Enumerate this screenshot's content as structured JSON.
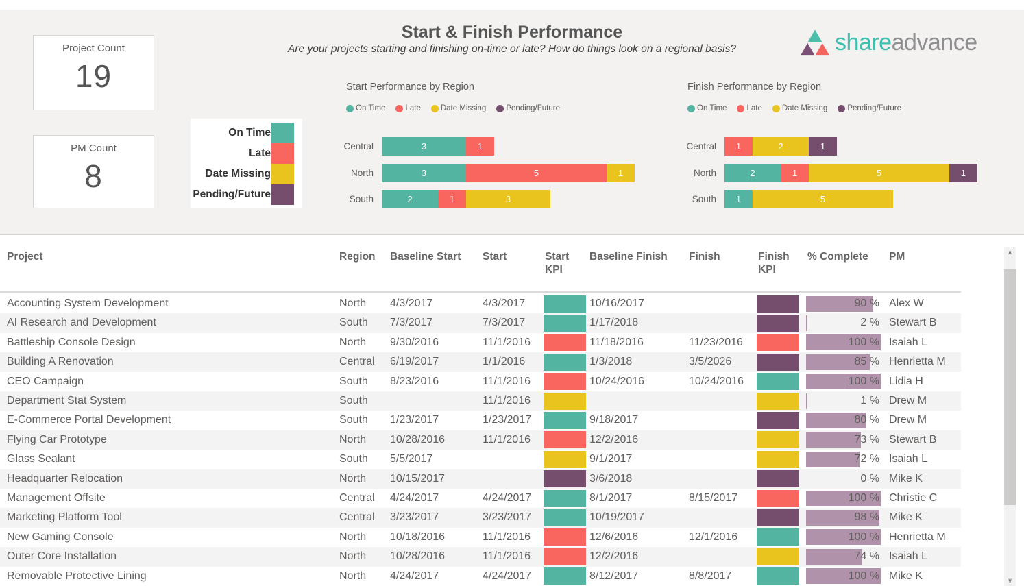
{
  "header": {
    "title": "Start & Finish Performance",
    "subtitle": "Are your projects starting and finishing on-time or late?  How do things look on a regional basis?",
    "logo": {
      "share_text": "share",
      "advance_text": "advance"
    }
  },
  "cards": [
    {
      "label": "Project Count",
      "value": "19"
    },
    {
      "label": "PM Count",
      "value": "8"
    }
  ],
  "colors": {
    "on_time": "#53b5a1",
    "late": "#f9655f",
    "date_missing": "#e9c31e",
    "pending_future": "#744e6c",
    "pct_bar": "#b093aa",
    "logo_teal": "#4cbfab",
    "logo_purple": "#7b5178",
    "logo_coral": "#f4655f"
  },
  "kpi_legend": {
    "items": [
      {
        "label": "On Time",
        "key": "on_time"
      },
      {
        "label": "Late",
        "key": "late"
      },
      {
        "label": "Date Missing",
        "key": "date_missing"
      },
      {
        "label": "Pending/Future",
        "key": "pending_future"
      }
    ]
  },
  "chart_data": [
    {
      "type": "bar",
      "orientation": "horizontal",
      "stacked": true,
      "title": "Start Performance by Region",
      "categories": [
        "Central",
        "North",
        "South"
      ],
      "legend": [
        "On Time",
        "Late",
        "Date Missing",
        "Pending/Future"
      ],
      "legend_position": "top",
      "xlim": [
        0,
        9
      ],
      "grid": false,
      "series": [
        {
          "name": "On Time",
          "key": "on_time",
          "values": [
            3,
            3,
            2
          ]
        },
        {
          "name": "Late",
          "key": "late",
          "values": [
            1,
            5,
            1
          ]
        },
        {
          "name": "Date Missing",
          "key": "date_missing",
          "values": [
            0,
            1,
            3
          ]
        },
        {
          "name": "Pending/Future",
          "key": "pending_future",
          "values": [
            0,
            0,
            0
          ]
        }
      ]
    },
    {
      "type": "bar",
      "orientation": "horizontal",
      "stacked": true,
      "title": "Finish Performance by Region",
      "categories": [
        "Central",
        "North",
        "South"
      ],
      "legend": [
        "On Time",
        "Late",
        "Date Missing",
        "Pending/Future"
      ],
      "legend_position": "top",
      "xlim": [
        0,
        9
      ],
      "grid": false,
      "series": [
        {
          "name": "On Time",
          "key": "on_time",
          "values": [
            0,
            2,
            1
          ]
        },
        {
          "name": "Late",
          "key": "late",
          "values": [
            1,
            1,
            0
          ]
        },
        {
          "name": "Date Missing",
          "key": "date_missing",
          "values": [
            2,
            5,
            5
          ]
        },
        {
          "name": "Pending/Future",
          "key": "pending_future",
          "values": [
            1,
            1,
            0
          ]
        }
      ]
    }
  ],
  "table": {
    "columns": [
      "Project",
      "Region",
      "Baseline Start",
      "Start",
      "Start KPI",
      "Baseline Finish",
      "Finish",
      "Finish KPI",
      "% Complete",
      "PM"
    ],
    "rows": [
      {
        "project": "Accounting System Development",
        "region": "North",
        "baseline_start": "4/3/2017",
        "start": "4/3/2017",
        "start_kpi": "on_time",
        "baseline_finish": "10/16/2017",
        "finish": "",
        "finish_kpi": "pending_future",
        "pct_complete": 90,
        "pm": "Alex W"
      },
      {
        "project": "AI Research and Development",
        "region": "South",
        "baseline_start": "7/3/2017",
        "start": "7/3/2017",
        "start_kpi": "on_time",
        "baseline_finish": "1/17/2018",
        "finish": "",
        "finish_kpi": "pending_future",
        "pct_complete": 2,
        "pm": "Stewart B"
      },
      {
        "project": "Battleship Console Design",
        "region": "North",
        "baseline_start": "9/30/2016",
        "start": "11/1/2016",
        "start_kpi": "late",
        "baseline_finish": "11/18/2016",
        "finish": "11/23/2016",
        "finish_kpi": "late",
        "pct_complete": 100,
        "pm": "Isaiah L"
      },
      {
        "project": "Building A Renovation",
        "region": "Central",
        "baseline_start": "6/19/2017",
        "start": "1/1/2016",
        "start_kpi": "on_time",
        "baseline_finish": "1/3/2018",
        "finish": "3/5/2026",
        "finish_kpi": "pending_future",
        "pct_complete": 85,
        "pm": "Henrietta M"
      },
      {
        "project": "CEO Campaign",
        "region": "South",
        "baseline_start": "8/23/2016",
        "start": "11/1/2016",
        "start_kpi": "late",
        "baseline_finish": "10/24/2016",
        "finish": "10/24/2016",
        "finish_kpi": "on_time",
        "pct_complete": 100,
        "pm": "Lidia H"
      },
      {
        "project": "Department Stat System",
        "region": "South",
        "baseline_start": "",
        "start": "11/1/2016",
        "start_kpi": "date_missing",
        "baseline_finish": "",
        "finish": "",
        "finish_kpi": "date_missing",
        "pct_complete": 1,
        "pm": "Drew M"
      },
      {
        "project": "E-Commerce Portal Development",
        "region": "South",
        "baseline_start": "1/23/2017",
        "start": "1/23/2017",
        "start_kpi": "on_time",
        "baseline_finish": "9/18/2017",
        "finish": "",
        "finish_kpi": "pending_future",
        "pct_complete": 80,
        "pm": "Drew M"
      },
      {
        "project": "Flying Car Prototype",
        "region": "North",
        "baseline_start": "10/28/2016",
        "start": "11/1/2016",
        "start_kpi": "late",
        "baseline_finish": "12/2/2016",
        "finish": "",
        "finish_kpi": "date_missing",
        "pct_complete": 73,
        "pm": "Stewart B"
      },
      {
        "project": "Glass Sealant",
        "region": "South",
        "baseline_start": "5/5/2017",
        "start": "",
        "start_kpi": "date_missing",
        "baseline_finish": "9/1/2017",
        "finish": "",
        "finish_kpi": "date_missing",
        "pct_complete": 72,
        "pm": "Isaiah L"
      },
      {
        "project": "Headquarter Relocation",
        "region": "North",
        "baseline_start": "10/15/2017",
        "start": "",
        "start_kpi": "pending_future",
        "baseline_finish": "3/6/2018",
        "finish": "",
        "finish_kpi": "pending_future",
        "pct_complete": 0,
        "pm": "Mike K"
      },
      {
        "project": "Management Offsite",
        "region": "Central",
        "baseline_start": "4/24/2017",
        "start": "4/24/2017",
        "start_kpi": "on_time",
        "baseline_finish": "8/1/2017",
        "finish": "8/15/2017",
        "finish_kpi": "late",
        "pct_complete": 100,
        "pm": "Christie C"
      },
      {
        "project": "Marketing Platform Tool",
        "region": "Central",
        "baseline_start": "3/23/2017",
        "start": "3/23/2017",
        "start_kpi": "on_time",
        "baseline_finish": "10/19/2017",
        "finish": "",
        "finish_kpi": "pending_future",
        "pct_complete": 98,
        "pm": "Mike K"
      },
      {
        "project": "New Gaming Console",
        "region": "North",
        "baseline_start": "10/18/2016",
        "start": "11/1/2016",
        "start_kpi": "late",
        "baseline_finish": "12/6/2016",
        "finish": "12/1/2016",
        "finish_kpi": "on_time",
        "pct_complete": 100,
        "pm": "Henrietta M"
      },
      {
        "project": "Outer Core Installation",
        "region": "North",
        "baseline_start": "10/28/2016",
        "start": "11/1/2016",
        "start_kpi": "late",
        "baseline_finish": "12/2/2016",
        "finish": "",
        "finish_kpi": "date_missing",
        "pct_complete": 74,
        "pm": "Isaiah L"
      },
      {
        "project": "Removable Protective Lining",
        "region": "North",
        "baseline_start": "4/24/2017",
        "start": "4/24/2017",
        "start_kpi": "on_time",
        "baseline_finish": "8/12/2017",
        "finish": "8/8/2017",
        "finish_kpi": "on_time",
        "pct_complete": 100,
        "pm": "Mike K"
      }
    ],
    "pct_suffix": " %"
  },
  "icons": {
    "scroll_up_glyph": "∧",
    "scroll_down_glyph": "∨"
  }
}
